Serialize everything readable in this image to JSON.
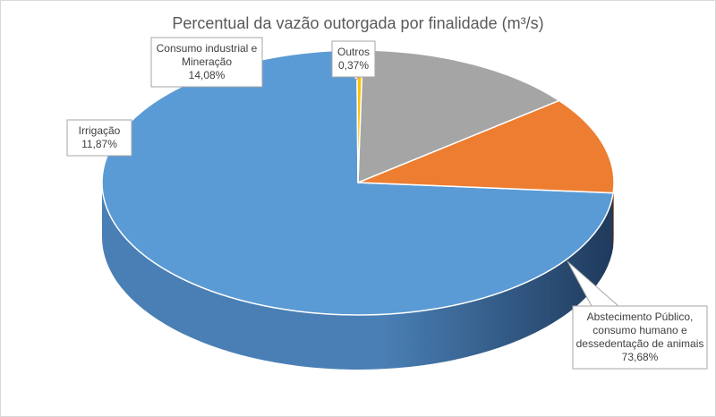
{
  "chart_data": {
    "type": "pie",
    "style": "3d",
    "title": "Percentual da vazão outorgada por finalidade (m³/s)",
    "slices": [
      {
        "name": "Abstecimento Público, consumo humano e dessedentação de animais",
        "label_lines": [
          "Abstecimento Público,",
          "consumo humano e",
          "dessedentação de animais"
        ],
        "value": 73.68,
        "value_label": "73,68%",
        "color": "#5b9bd5",
        "side_color_light": "#4a7fb5",
        "side_color_dark": "#1f3a5c"
      },
      {
        "name": "Irrigação",
        "label_lines": [
          "Irrigação"
        ],
        "value": 11.87,
        "value_label": "11,87%",
        "color": "#ed7d31",
        "side_color_light": "#c5652a",
        "side_color_dark": "#8a4216"
      },
      {
        "name": "Consumo industrial e Mineração",
        "label_lines": [
          "Consumo industrial e",
          "Mineração"
        ],
        "value": 14.08,
        "value_label": "14,08%",
        "color": "#a5a5a5",
        "side_color_light": "#8a8a8a",
        "side_color_dark": "#5e5e5e"
      },
      {
        "name": "Outros",
        "label_lines": [
          "Outros"
        ],
        "value": 0.37,
        "value_label": "0,37%",
        "color": "#ffc000",
        "side_color_light": "#d9a300",
        "side_color_dark": "#a07800"
      }
    ],
    "legend": "none",
    "data_labels": "callouts"
  }
}
